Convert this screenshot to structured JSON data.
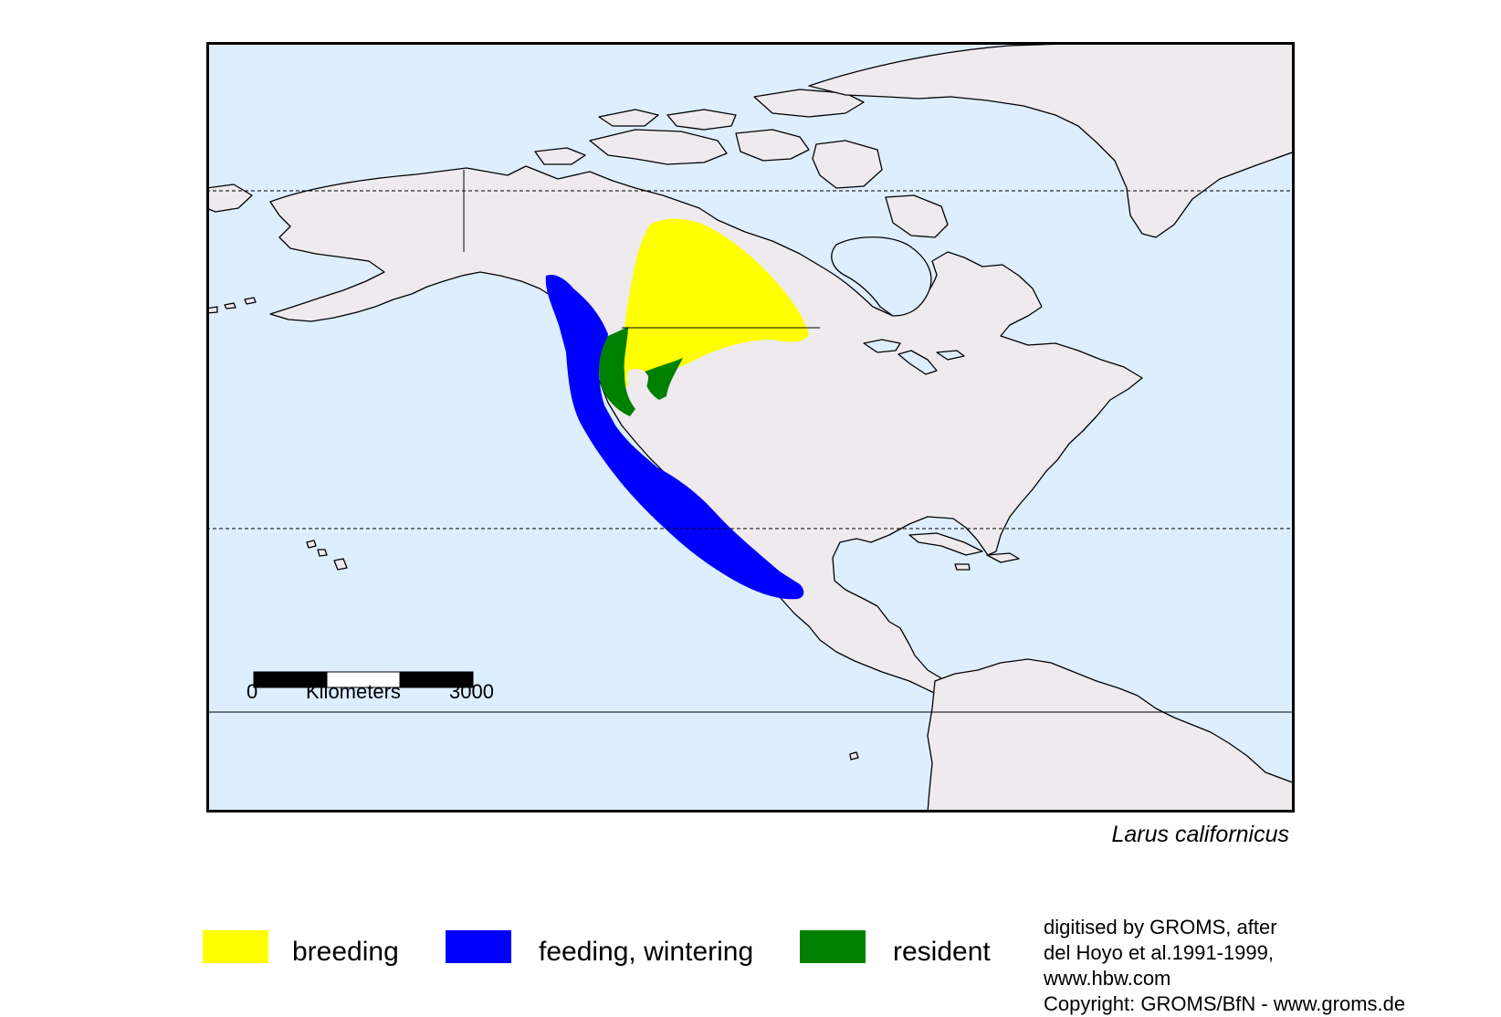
{
  "species_name": "Larus californicus",
  "scale_bar": {
    "start_label": "0",
    "unit_label": "Kilometers",
    "end_label": "3000"
  },
  "legend": [
    {
      "label": "breeding",
      "color": "#FFFF00"
    },
    {
      "label": "feeding, wintering",
      "color": "#0000FF"
    },
    {
      "label": "resident",
      "color": "#008000"
    }
  ],
  "credits": [
    "digitised by GROMS, after",
    "del Hoyo et al.1991-1999,",
    "www.hbw.com",
    "Copyright: GROMS/BfN - www.groms.de"
  ],
  "colors": {
    "ocean": "#DDEEFF",
    "land": "#EEEAEE",
    "frame": "#000000"
  }
}
